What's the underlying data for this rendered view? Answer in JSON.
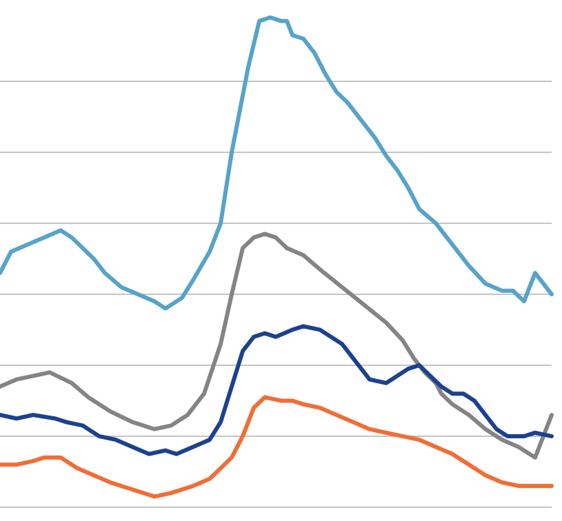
{
  "chart_data": {
    "type": "line",
    "title": "",
    "xlabel": "",
    "ylabel": "",
    "grid": true,
    "legend": "none",
    "xlim": [
      0,
      100
    ],
    "ylim": [
      0,
      7
    ],
    "gridlines_y": [
      0,
      1,
      2,
      3,
      4,
      5,
      6
    ],
    "series": [
      {
        "color": "#57a3c9",
        "x": [
          0,
          2,
          5,
          8,
          11,
          13,
          17,
          19,
          22,
          25,
          28,
          30,
          33,
          35,
          38,
          40,
          42,
          45,
          47,
          49,
          51,
          52,
          53,
          55,
          57,
          59,
          61,
          63,
          66,
          68,
          70,
          72,
          74,
          76,
          79,
          81,
          85,
          88,
          91,
          93,
          95,
          97,
          100
        ],
        "y": [
          3.3,
          3.6,
          3.7,
          3.8,
          3.9,
          3.8,
          3.5,
          3.3,
          3.1,
          3.0,
          2.9,
          2.8,
          2.95,
          3.2,
          3.6,
          4.0,
          5.0,
          6.2,
          6.85,
          6.9,
          6.85,
          6.85,
          6.65,
          6.6,
          6.4,
          6.1,
          5.85,
          5.7,
          5.4,
          5.2,
          4.95,
          4.75,
          4.5,
          4.2,
          4.0,
          3.8,
          3.4,
          3.15,
          3.05,
          3.05,
          2.9,
          3.3,
          3.0
        ]
      },
      {
        "color": "#848484",
        "x": [
          0,
          3,
          6,
          9,
          13,
          16,
          20,
          24,
          28,
          31,
          34,
          37,
          40,
          42,
          44,
          46,
          48,
          50,
          52,
          55,
          58,
          62,
          66,
          70,
          73,
          75,
          77,
          79,
          80,
          82,
          85,
          88,
          91,
          94,
          97,
          100
        ],
        "y": [
          1.7,
          1.8,
          1.85,
          1.9,
          1.75,
          1.55,
          1.35,
          1.2,
          1.1,
          1.15,
          1.3,
          1.6,
          2.3,
          3.0,
          3.65,
          3.8,
          3.85,
          3.8,
          3.65,
          3.55,
          3.35,
          3.1,
          2.85,
          2.6,
          2.35,
          2.1,
          1.9,
          1.75,
          1.6,
          1.45,
          1.3,
          1.1,
          0.95,
          0.85,
          0.7,
          1.3
        ]
      },
      {
        "color": "#1c428e",
        "x": [
          0,
          3,
          6,
          10,
          12,
          15,
          18,
          21,
          24,
          27,
          30,
          32,
          35,
          38,
          40,
          42,
          44,
          46,
          48,
          50,
          53,
          55,
          58,
          62,
          65,
          67,
          70,
          72,
          74,
          76,
          78,
          80,
          82,
          84,
          86,
          88,
          90,
          92,
          95,
          97,
          100
        ],
        "y": [
          1.3,
          1.25,
          1.3,
          1.25,
          1.2,
          1.15,
          1.0,
          0.95,
          0.85,
          0.75,
          0.8,
          0.75,
          0.85,
          0.95,
          1.2,
          1.7,
          2.2,
          2.4,
          2.45,
          2.4,
          2.5,
          2.55,
          2.5,
          2.3,
          2.0,
          1.8,
          1.75,
          1.85,
          1.95,
          2.0,
          1.85,
          1.7,
          1.6,
          1.6,
          1.5,
          1.3,
          1.1,
          1.0,
          1.0,
          1.05,
          1.0
        ]
      },
      {
        "color": "#f06e36",
        "x": [
          0,
          3,
          6,
          8,
          11,
          14,
          17,
          20,
          24,
          28,
          31,
          33,
          35,
          38,
          40,
          42,
          44,
          46,
          48,
          51,
          53,
          55,
          58,
          61,
          64,
          67,
          70,
          73,
          76,
          79,
          82,
          85,
          88,
          91,
          94,
          97,
          100
        ],
        "y": [
          0.6,
          0.6,
          0.65,
          0.7,
          0.7,
          0.55,
          0.45,
          0.35,
          0.25,
          0.15,
          0.2,
          0.25,
          0.3,
          0.4,
          0.55,
          0.7,
          1.0,
          1.4,
          1.55,
          1.5,
          1.5,
          1.45,
          1.4,
          1.3,
          1.2,
          1.1,
          1.05,
          1.0,
          0.95,
          0.85,
          0.75,
          0.6,
          0.45,
          0.35,
          0.3,
          0.3,
          0.3
        ]
      }
    ]
  }
}
